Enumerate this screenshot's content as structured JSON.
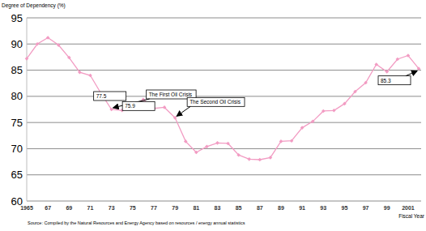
{
  "chart_data": {
    "type": "line",
    "y_label": "Degree of Dependency (%)",
    "x_label": "Fiscal Year",
    "source": "Source: Compiled by the Natural Resources and Energy Agency based on resources / energy annual statistics",
    "x": [
      1965,
      1966,
      1967,
      1968,
      1969,
      1970,
      1971,
      1972,
      1973,
      1974,
      1975,
      1976,
      1977,
      1978,
      1979,
      1980,
      1981,
      1982,
      1983,
      1984,
      1985,
      1986,
      1987,
      1988,
      1989,
      1990,
      1991,
      1992,
      1993,
      1994,
      1995,
      1996,
      1997,
      1998,
      1999,
      2000,
      2001,
      2002
    ],
    "values": [
      87.2,
      90.0,
      91.2,
      89.8,
      87.4,
      84.6,
      84.0,
      80.6,
      77.5,
      77.3,
      78.1,
      79.4,
      77.7,
      77.9,
      75.9,
      71.4,
      69.3,
      70.4,
      71.1,
      71.0,
      68.8,
      68.0,
      67.9,
      68.3,
      71.4,
      71.5,
      74.0,
      75.2,
      77.2,
      77.3,
      78.6,
      80.9,
      82.6,
      86.1,
      84.7,
      87.1,
      87.8,
      85.3
    ],
    "color": "#f29cc3",
    "marker": "diamond",
    "xlim": [
      1965,
      2002
    ],
    "xticks": [
      1965,
      {
        "value": 1967,
        "label": "67"
      },
      {
        "value": 1969,
        "label": "69"
      },
      {
        "value": 1971,
        "label": "71"
      },
      {
        "value": 1973,
        "label": "73"
      },
      {
        "value": 1975,
        "label": "75"
      },
      {
        "value": 1977,
        "label": "77"
      },
      {
        "value": 1979,
        "label": "79"
      },
      {
        "value": 1981,
        "label": "81"
      },
      {
        "value": 1983,
        "label": "83"
      },
      {
        "value": 1985,
        "label": "85"
      },
      {
        "value": 1987,
        "label": "87"
      },
      {
        "value": 1989,
        "label": "89"
      },
      {
        "value": 1991,
        "label": "91"
      },
      {
        "value": 1993,
        "label": "93"
      },
      {
        "value": 1995,
        "label": "95"
      },
      {
        "value": 1997,
        "label": "97"
      },
      {
        "value": 1999,
        "label": "99"
      },
      2001
    ],
    "ylim": [
      60,
      95
    ],
    "yticks": [
      60,
      65,
      70,
      75,
      80,
      85,
      90,
      95
    ],
    "grid": true,
    "annotations": [
      {
        "text": "The First Oil Crisis",
        "x": 1973
      },
      {
        "text": "77.5",
        "x": 1973
      },
      {
        "text": "The Second Oil Crisis",
        "x": 1979
      },
      {
        "text": "75.9",
        "x": 1979
      },
      {
        "text": "85.3",
        "x": 2002
      }
    ]
  }
}
